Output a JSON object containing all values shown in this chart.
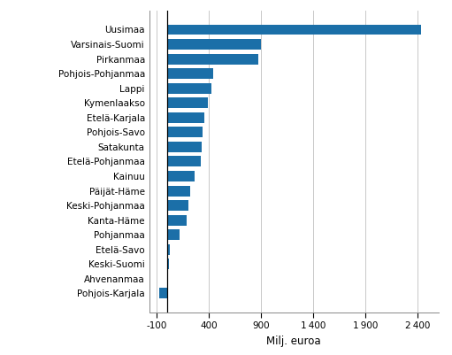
{
  "categories": [
    "Uusimaa",
    "Varsinais-Suomi",
    "Pirkanmaa",
    "Pohjois-Pohjanmaa",
    "Lappi",
    "Kymenlaakso",
    "Etelä-Karjala",
    "Pohjois-Savo",
    "Satakunta",
    "Etelä-Pohjanmaa",
    "Kainuu",
    "Päijät-Häme",
    "Keski-Pohjanmaa",
    "Kanta-Häme",
    "Pohjanmaa",
    "Etelä-Savo",
    "Keski-Suomi",
    "Ahvenanmaa",
    "Pohjois-Karjala"
  ],
  "values": [
    2430,
    900,
    870,
    440,
    425,
    385,
    350,
    335,
    325,
    320,
    265,
    220,
    205,
    185,
    120,
    22,
    18,
    5,
    -75
  ],
  "bar_color": "#1b6fa8",
  "xlabel": "Milj. euroa",
  "xlim": [
    -175,
    2600
  ],
  "xticks": [
    -100,
    400,
    900,
    1400,
    1900,
    2400
  ],
  "background_color": "#ffffff",
  "grid_color": "#c8c8c8",
  "bar_height": 0.72,
  "label_fontsize": 7.5,
  "xlabel_fontsize": 8.5,
  "tick_fontsize": 7.5
}
